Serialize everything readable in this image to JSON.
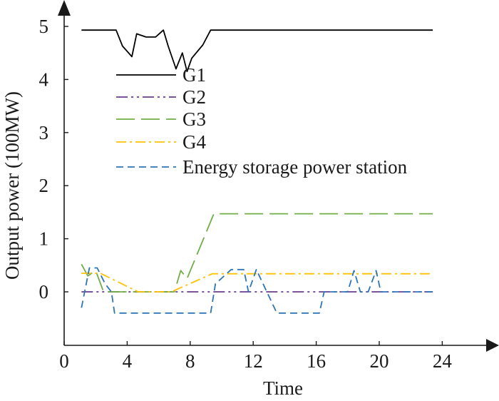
{
  "chart_data": {
    "type": "line",
    "title": "",
    "xlabel": "Time",
    "ylabel": "Output power (100MW)",
    "xlim": [
      0,
      24
    ],
    "ylim": [
      -0.8,
      5.4
    ],
    "xticks": [
      0,
      4,
      8,
      12,
      16,
      20,
      24
    ],
    "yticks": [
      0,
      1,
      2,
      3,
      4,
      5
    ],
    "grid": false,
    "legend_position": "center",
    "series": [
      {
        "name": "G1",
        "color": "#000000",
        "style": "solid",
        "x": [
          1.1,
          3.3,
          3.7,
          4.3,
          4.6,
          5.2,
          5.8,
          6.3,
          6.6,
          7.1,
          7.5,
          7.8,
          8.1,
          8.8,
          9.3,
          23.4
        ],
        "y": [
          4.93,
          4.93,
          4.63,
          4.43,
          4.86,
          4.8,
          4.8,
          4.93,
          4.63,
          4.2,
          4.5,
          4.15,
          4.4,
          4.65,
          4.93,
          4.93
        ]
      },
      {
        "name": "G2",
        "color": "#6a3d8f",
        "style": "dashdotdot",
        "x": [
          1.1,
          23.4
        ],
        "y": [
          0,
          0
        ]
      },
      {
        "name": "G3",
        "color": "#70ad47",
        "style": "longdash",
        "x": [
          1.1,
          1.5,
          2.0,
          2.5,
          7.0,
          7.4,
          7.8,
          9.5,
          23.4
        ],
        "y": [
          0.52,
          0.3,
          0.4,
          0,
          0,
          0.4,
          0.25,
          1.47,
          1.47
        ]
      },
      {
        "name": "G4",
        "color": "#ffc000",
        "style": "dashdot",
        "x": [
          1.1,
          2.3,
          4.7,
          6.8,
          9.4,
          23.4
        ],
        "y": [
          0.35,
          0.35,
          0,
          0,
          0.34,
          0.34
        ]
      },
      {
        "name": "Energy storage power station",
        "color": "#2e75b6",
        "style": "dashed",
        "x": [
          1.1,
          1.6,
          2.1,
          2.6,
          3.0,
          3.2,
          9.3,
          9.6,
          10.6,
          11.4,
          11.7,
          12.2,
          13.5,
          16.2,
          16.5,
          18.0,
          18.4,
          18.8,
          19.3,
          19.8,
          20.1,
          23.4
        ],
        "y": [
          -0.3,
          0.45,
          0.45,
          0.15,
          0,
          -0.4,
          -0.4,
          0.15,
          0.42,
          0.42,
          0,
          0.42,
          -0.4,
          -0.4,
          0,
          0,
          0.4,
          0,
          0,
          0.4,
          0,
          0
        ]
      }
    ]
  }
}
